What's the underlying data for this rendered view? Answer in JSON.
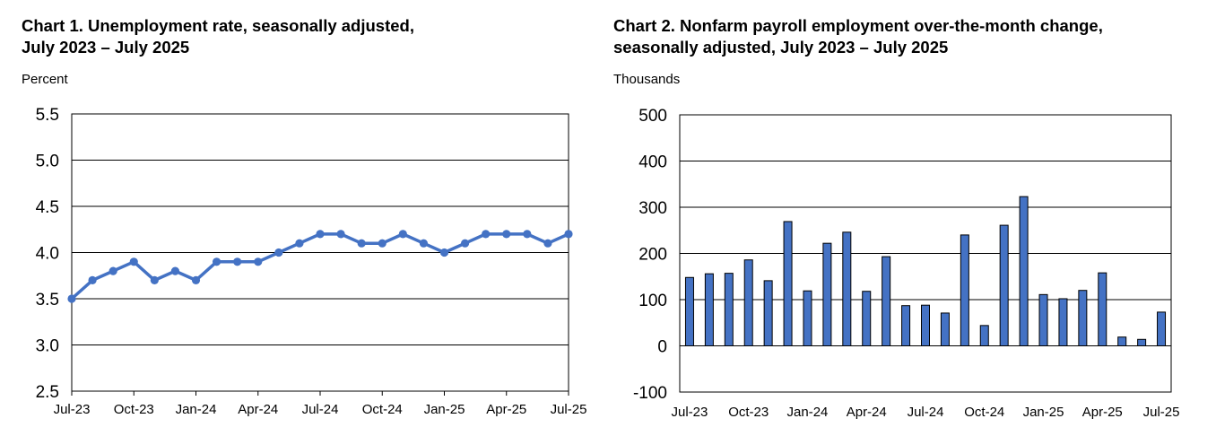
{
  "colors": {
    "series": "#4472C4",
    "bar_outline": "#000000",
    "grid": "#000000"
  },
  "chart_data": [
    {
      "type": "line",
      "title_line1": "Chart 1. Unemployment rate, seasonally adjusted,",
      "title_line2": "July 2023 – July 2025",
      "ylabel": "Percent",
      "ylim": [
        2.5,
        5.5
      ],
      "yticks": [
        "5.5",
        "5.0",
        "4.5",
        "4.0",
        "3.5",
        "3.0",
        "2.5"
      ],
      "xtick_labels": [
        "Jul-23",
        "Oct-23",
        "Jan-24",
        "Apr-24",
        "Jul-24",
        "Oct-24",
        "Jan-25",
        "Apr-25",
        "Jul-25"
      ],
      "grid": true,
      "x": [
        "Jul-23",
        "Aug-23",
        "Sep-23",
        "Oct-23",
        "Nov-23",
        "Dec-23",
        "Jan-24",
        "Feb-24",
        "Mar-24",
        "Apr-24",
        "May-24",
        "Jun-24",
        "Jul-24",
        "Aug-24",
        "Sep-24",
        "Oct-24",
        "Nov-24",
        "Dec-24",
        "Jan-25",
        "Feb-25",
        "Mar-25",
        "Apr-25",
        "May-25",
        "Jun-25",
        "Jul-25"
      ],
      "values": [
        3.5,
        3.7,
        3.8,
        3.9,
        3.7,
        3.8,
        3.7,
        3.9,
        3.9,
        3.9,
        4.0,
        4.1,
        4.2,
        4.2,
        4.1,
        4.1,
        4.2,
        4.1,
        4.0,
        4.1,
        4.2,
        4.2,
        4.2,
        4.1,
        4.2
      ]
    },
    {
      "type": "bar",
      "title_line1": "Chart 2. Nonfarm payroll employment over-the-month change,",
      "title_line2": "seasonally adjusted, July 2023 – July 2025",
      "ylabel": "Thousands",
      "ylim": [
        -100,
        500
      ],
      "yticks": [
        "500",
        "400",
        "300",
        "200",
        "100",
        "0",
        "-100"
      ],
      "xtick_labels": [
        "Jul-23",
        "Oct-23",
        "Jan-24",
        "Apr-24",
        "Jul-24",
        "Oct-24",
        "Jan-25",
        "Apr-25",
        "Jul-25"
      ],
      "grid": true,
      "x": [
        "Jul-23",
        "Aug-23",
        "Sep-23",
        "Oct-23",
        "Nov-23",
        "Dec-23",
        "Jan-24",
        "Feb-24",
        "Mar-24",
        "Apr-24",
        "May-24",
        "Jun-24",
        "Jul-24",
        "Aug-24",
        "Sep-24",
        "Oct-24",
        "Nov-24",
        "Dec-24",
        "Jan-25",
        "Feb-25",
        "Mar-25",
        "Apr-25",
        "May-25",
        "Jun-25",
        "Jul-25"
      ],
      "values": [
        148,
        156,
        157,
        186,
        141,
        269,
        119,
        222,
        246,
        118,
        193,
        87,
        88,
        71,
        240,
        44,
        261,
        323,
        111,
        102,
        120,
        158,
        19,
        14,
        73
      ]
    }
  ]
}
